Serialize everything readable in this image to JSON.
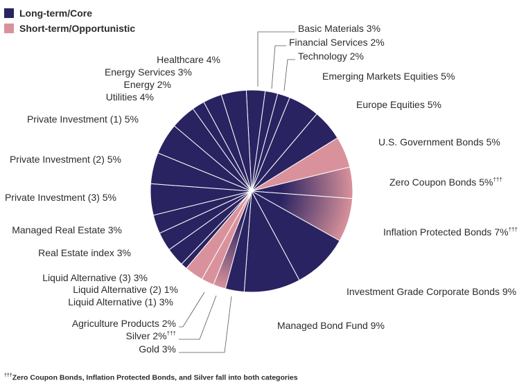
{
  "legend": {
    "items": [
      {
        "label": "Long-term/Core",
        "color": "#2a2361"
      },
      {
        "label": "Short-term/Opportunistic",
        "color": "#d9929b"
      }
    ]
  },
  "footnote": {
    "marker": "†††",
    "text": "Zero Coupon Bonds, Inflation Protected Bonds, and Silver fall into both categories"
  },
  "colors": {
    "core": "#2a2361",
    "opportunistic": "#d9929b",
    "both": "gradient core to opportunistic",
    "divider": "#ffffff",
    "leader": "#555555"
  },
  "chart_data": {
    "type": "pie",
    "unit": "%",
    "slices": [
      {
        "label": "Basic Materials 3%",
        "value": 3,
        "category": "core",
        "dagger": ""
      },
      {
        "label": "Financial Services 2%",
        "value": 2,
        "category": "core",
        "dagger": ""
      },
      {
        "label": "Technology 2%",
        "value": 2,
        "category": "core",
        "dagger": ""
      },
      {
        "label": "Emerging Markets Equities 5%",
        "value": 5,
        "category": "core",
        "dagger": ""
      },
      {
        "label": "Europe Equities 5%",
        "value": 5,
        "category": "core",
        "dagger": ""
      },
      {
        "label": "U.S. Government Bonds 5%",
        "value": 5,
        "category": "opportunistic",
        "dagger": ""
      },
      {
        "label": "Zero Coupon Bonds 5%",
        "value": 5,
        "category": "both",
        "dagger": "†††"
      },
      {
        "label": "Inflation Protected Bonds 7%",
        "value": 7,
        "category": "both",
        "dagger": "†††"
      },
      {
        "label": "Investment Grade Corporate Bonds 9%",
        "value": 9,
        "category": "core",
        "dagger": ""
      },
      {
        "label": "Managed Bond Fund 9%",
        "value": 9,
        "category": "core",
        "dagger": ""
      },
      {
        "label": "Gold 3%",
        "value": 3,
        "category": "core",
        "dagger": ""
      },
      {
        "label": "Silver 2%",
        "value": 2,
        "category": "both",
        "dagger": "†††"
      },
      {
        "label": "Agriculture Products 2%",
        "value": 2,
        "category": "opportunistic",
        "dagger": ""
      },
      {
        "label": "Liquid Alternative (1) 3%",
        "value": 3,
        "category": "opportunistic",
        "dagger": ""
      },
      {
        "label": "Liquid Alternative (2) 1%",
        "value": 1,
        "category": "core",
        "dagger": ""
      },
      {
        "label": "Liquid Alternative (3) 3%",
        "value": 3,
        "category": "core",
        "dagger": ""
      },
      {
        "label": "Real Estate index 3%",
        "value": 3,
        "category": "core",
        "dagger": ""
      },
      {
        "label": "Managed Real Estate 3%",
        "value": 3,
        "category": "core",
        "dagger": ""
      },
      {
        "label": "Private Investment (3) 5%",
        "value": 5,
        "category": "core",
        "dagger": ""
      },
      {
        "label": "Private Investment (2) 5%",
        "value": 5,
        "category": "core",
        "dagger": ""
      },
      {
        "label": "Private Investment (1) 5%",
        "value": 5,
        "category": "core",
        "dagger": ""
      },
      {
        "label": "Utilities 4%",
        "value": 4,
        "category": "core",
        "dagger": ""
      },
      {
        "label": "Energy 2%",
        "value": 2,
        "category": "core",
        "dagger": ""
      },
      {
        "label": "Energy Services 3%",
        "value": 3,
        "category": "core",
        "dagger": ""
      },
      {
        "label": "Healthcare 4%",
        "value": 4,
        "category": "core",
        "dagger": ""
      }
    ]
  }
}
